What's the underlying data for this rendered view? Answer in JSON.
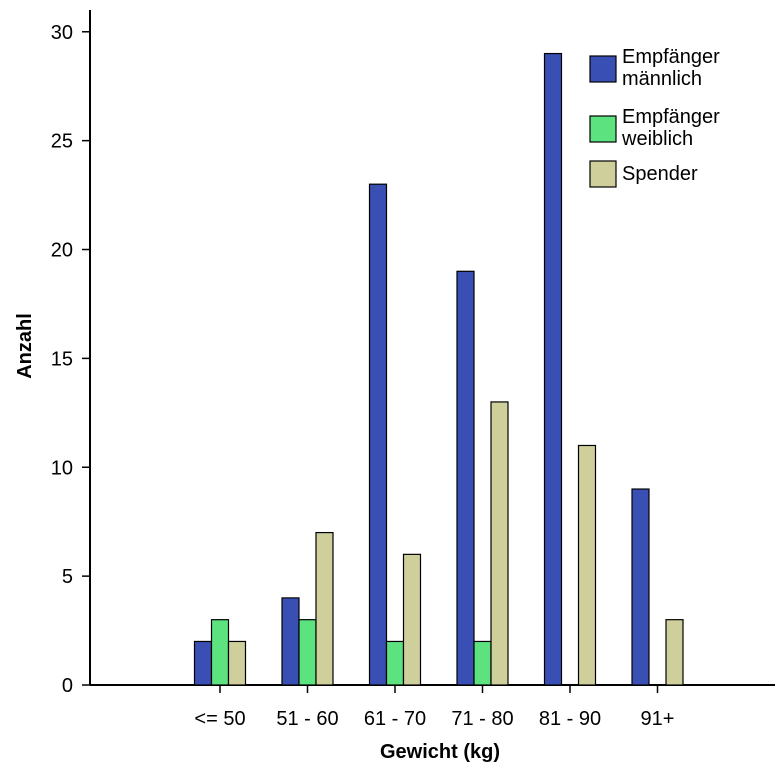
{
  "chart_data": {
    "type": "bar",
    "title": "",
    "xlabel": "Gewicht (kg)",
    "ylabel": "Anzahl",
    "categories": [
      "<= 50",
      "51 - 60",
      "61 - 70",
      "71 - 80",
      "81 - 90",
      "91+"
    ],
    "series": [
      {
        "name": "Empfänger männlich",
        "legend_lines": [
          "Empfänger",
          "männlich"
        ],
        "color": "#3a4fb4",
        "values": [
          2,
          4,
          23,
          19,
          29,
          9
        ]
      },
      {
        "name": "Empfänger weiblich",
        "legend_lines": [
          "Empfänger",
          "weiblich"
        ],
        "color": "#5ce27e",
        "values": [
          3,
          3,
          2,
          2,
          0,
          0
        ]
      },
      {
        "name": "Spender",
        "legend_lines": [
          "Spender"
        ],
        "color": "#cfcf9c",
        "values": [
          2,
          7,
          6,
          13,
          11,
          3
        ]
      }
    ],
    "ylim": [
      0,
      31
    ],
    "yticks": [
      0,
      5,
      10,
      15,
      20,
      25,
      30
    ],
    "grid": false,
    "legend": "top-right"
  }
}
